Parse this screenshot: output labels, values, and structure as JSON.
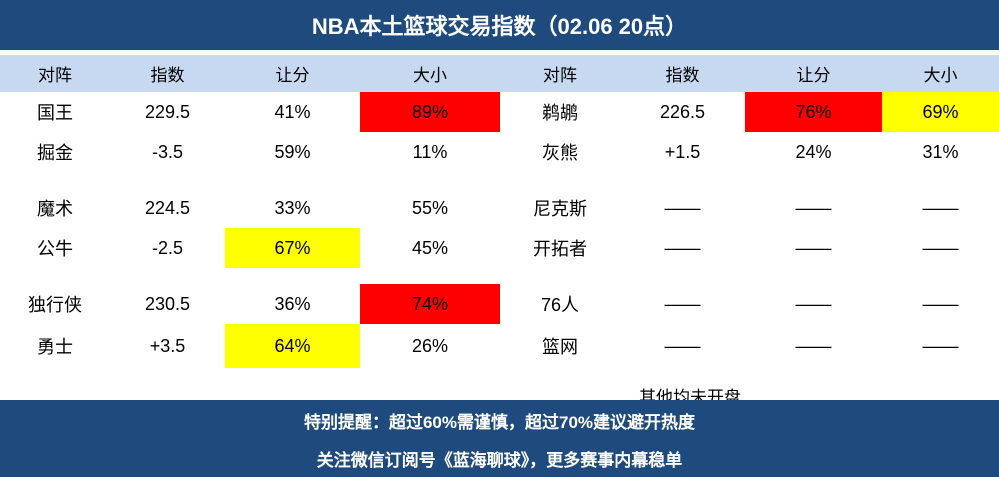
{
  "title": "NBA本土篮球交易指数（02.06 20点）",
  "header": [
    "对阵",
    "指数",
    "让分",
    "大小",
    "对阵",
    "指数",
    "让分",
    "大小"
  ],
  "groups": [
    [
      {
        "cells": [
          "国王",
          "229.5",
          "41%",
          "89%",
          "鹈鹕",
          "226.5",
          "76%",
          "69%"
        ],
        "fill": [
          null,
          null,
          null,
          "#ff0000",
          null,
          null,
          "#ff0000",
          "#ffff00"
        ]
      },
      {
        "cells": [
          "掘金",
          "-3.5",
          "59%",
          "11%",
          "灰熊",
          "+1.5",
          "24%",
          "31%"
        ],
        "fill": [
          null,
          null,
          null,
          null,
          null,
          null,
          null,
          null
        ]
      }
    ],
    [
      {
        "cells": [
          "魔术",
          "224.5",
          "33%",
          "55%",
          "尼克斯",
          "——",
          "——",
          "——"
        ],
        "fill": [
          null,
          null,
          null,
          null,
          null,
          null,
          null,
          null
        ]
      },
      {
        "cells": [
          "公牛",
          "-2.5",
          "67%",
          "45%",
          "开拓者",
          "——",
          "——",
          "——"
        ],
        "fill": [
          null,
          null,
          "#ffff00",
          null,
          null,
          null,
          null,
          null
        ]
      }
    ],
    [
      {
        "cells": [
          "独行侠",
          "230.5",
          "36%",
          "74%",
          "76人",
          "——",
          "——",
          "——"
        ],
        "fill": [
          null,
          null,
          null,
          "#ff0000",
          null,
          null,
          null,
          null
        ]
      },
      {
        "cells": [
          "勇士",
          "+3.5",
          "64%",
          "26%",
          "篮网",
          "——",
          "——",
          "——"
        ],
        "fill": [
          null,
          null,
          "#ffff00",
          null,
          null,
          null,
          null,
          null
        ]
      }
    ]
  ],
  "note": "其他均未开盘",
  "footer": [
    "特别提醒：超过60%需谨慎，超过70%建议避开热度",
    "关注微信订阅号《蓝海聊球》，更多赛事内幕稳单"
  ]
}
